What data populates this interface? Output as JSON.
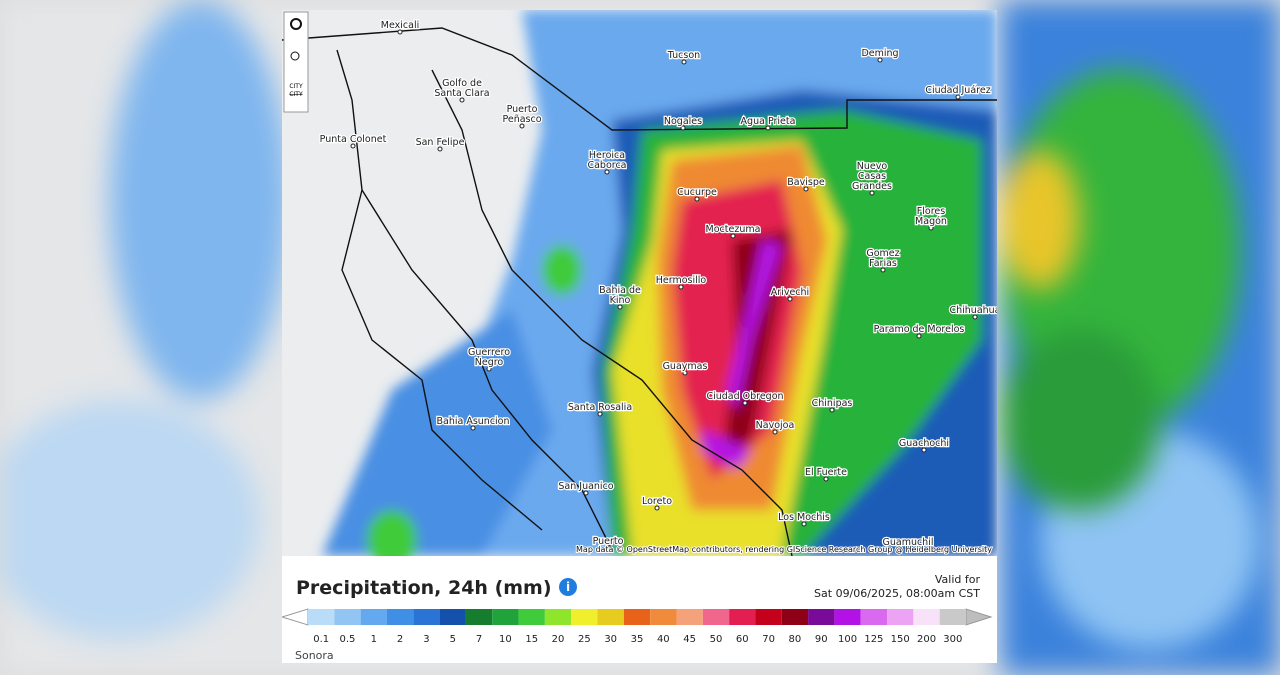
{
  "header": {
    "title": "Precipitation, 24h (mm)",
    "valid_for": "Valid for",
    "valid_time": "Sat 09/06/2025, 08:00am CST"
  },
  "controls": {
    "city_button_top": "CITY",
    "city_button_bottom": "CITY"
  },
  "attribution": "Map data © OpenStreetMap contributors, rendering GIScience Research Group @ Heidelberg University",
  "region": "Sonora",
  "legend": {
    "labels": [
      0.1,
      0.5,
      1,
      2,
      3,
      5,
      7,
      10,
      15,
      20,
      25,
      30,
      35,
      40,
      45,
      50,
      60,
      70,
      80,
      90,
      100,
      125,
      150,
      200,
      300
    ],
    "colors": [
      "#b9dcf8",
      "#93c5f4",
      "#64a9ef",
      "#3f8fe6",
      "#2a74d6",
      "#1351ad",
      "#167d2e",
      "#20a33b",
      "#3fcb3a",
      "#8fe52b",
      "#f0ef2c",
      "#e6cc1f",
      "#e8621a",
      "#f08b3b",
      "#f5a27b",
      "#f0668c",
      "#e31f52",
      "#c4001a",
      "#8e0015",
      "#7a0a98",
      "#b312e6",
      "#d96af0",
      "#eda3f4",
      "#f8e2f9",
      "#c9c9c9"
    ]
  },
  "cities": [
    {
      "lines": [
        "Mexicali"
      ]
    },
    {
      "lines": [
        "Tucson"
      ]
    },
    {
      "lines": [
        "Deming"
      ]
    },
    {
      "lines": [
        "Ciudad Juárez"
      ]
    },
    {
      "lines": [
        "Golfo de",
        "Santa Clara"
      ]
    },
    {
      "lines": [
        "Puerto",
        "Peñasco"
      ]
    },
    {
      "lines": [
        "Punta Colonet"
      ]
    },
    {
      "lines": [
        "San Felipe"
      ]
    },
    {
      "lines": [
        "Nogales"
      ]
    },
    {
      "lines": [
        "Agua Prieta"
      ]
    },
    {
      "lines": [
        "Heroica",
        "Caborca"
      ]
    },
    {
      "lines": [
        "Nuevo",
        "Casas",
        "Grandes"
      ]
    },
    {
      "lines": [
        "Cucurpe"
      ]
    },
    {
      "lines": [
        "Bavispe"
      ]
    },
    {
      "lines": [
        "Flores",
        "Magón"
      ]
    },
    {
      "lines": [
        "Moctezuma"
      ]
    },
    {
      "lines": [
        "Gomez",
        "Farias"
      ]
    },
    {
      "lines": [
        "Hermosillo"
      ]
    },
    {
      "lines": [
        "Bahia de",
        "Kino"
      ]
    },
    {
      "lines": [
        "Arivechi"
      ]
    },
    {
      "lines": [
        "Paramo de Morelos"
      ]
    },
    {
      "lines": [
        "Chihuahua"
      ]
    },
    {
      "lines": [
        "Guerrero",
        "Negro"
      ]
    },
    {
      "lines": [
        "Guaymas"
      ]
    },
    {
      "lines": [
        "Ciudad Obregon"
      ]
    },
    {
      "lines": [
        "Santa Rosalia"
      ]
    },
    {
      "lines": [
        "Chinipas"
      ]
    },
    {
      "lines": [
        "Bahia Asuncion"
      ]
    },
    {
      "lines": [
        "Navojoa"
      ]
    },
    {
      "lines": [
        "Guachochi"
      ]
    },
    {
      "lines": [
        "El Fuerte"
      ]
    },
    {
      "lines": [
        "San Juanico"
      ]
    },
    {
      "lines": [
        "Loreto"
      ]
    },
    {
      "lines": [
        "Los Mochis"
      ]
    },
    {
      "lines": [
        "Guamuchil"
      ]
    },
    {
      "lines": [
        "Puerto"
      ]
    }
  ]
}
